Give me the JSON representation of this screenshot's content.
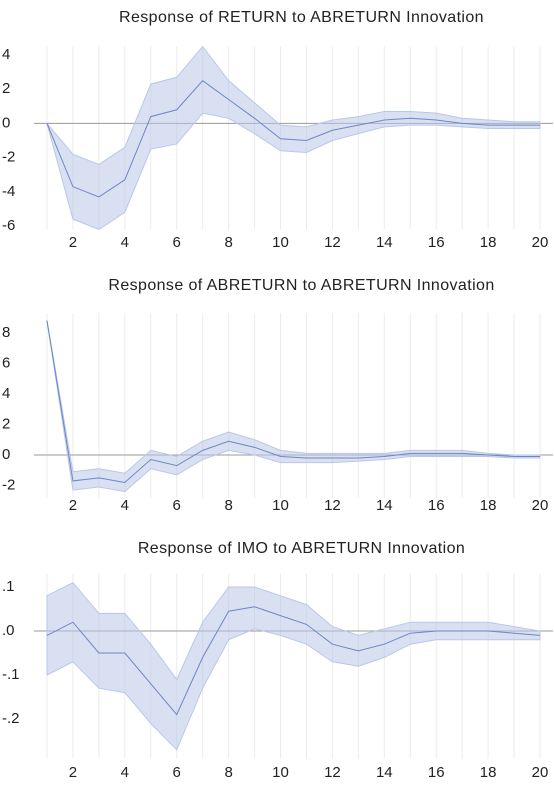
{
  "chart_data": [
    {
      "type": "line",
      "title": "Response of RETURN to ABRETURN Innovation",
      "x": [
        1,
        2,
        3,
        4,
        5,
        6,
        7,
        8,
        9,
        10,
        11,
        12,
        13,
        14,
        15,
        16,
        17,
        18,
        19,
        20
      ],
      "series": [
        {
          "color": "#6d86c6",
          "band_color": "#b9c7e8",
          "values": [
            0,
            -3.7,
            -4.3,
            -3.3,
            0.4,
            0.8,
            2.5,
            1.4,
            0.3,
            -0.9,
            -1.0,
            -0.4,
            -0.1,
            0.2,
            0.3,
            0.2,
            0.0,
            -0.1,
            -0.1,
            -0.1
          ],
          "lower": [
            0,
            -5.6,
            -6.2,
            -5.2,
            -1.5,
            -1.2,
            0.6,
            0.3,
            -0.6,
            -1.6,
            -1.7,
            -1.0,
            -0.6,
            -0.2,
            -0.1,
            -0.1,
            -0.2,
            -0.3,
            -0.3,
            -0.3
          ],
          "upper": [
            0,
            -1.8,
            -2.4,
            -1.4,
            2.3,
            2.7,
            4.5,
            2.5,
            1.2,
            -0.1,
            -0.2,
            0.2,
            0.4,
            0.7,
            0.7,
            0.6,
            0.3,
            0.2,
            0.1,
            0.1
          ]
        }
      ],
      "xlim": [
        0.5,
        20.5
      ],
      "ylim": [
        -6.2,
        4.5
      ],
      "xticks": [
        2,
        4,
        6,
        8,
        10,
        12,
        14,
        16,
        18,
        20
      ],
      "yticks": [
        4,
        2,
        0,
        -2,
        -4,
        -6
      ],
      "grid": true
    },
    {
      "type": "line",
      "title": "Response of ABRETURN to ABRETURN Innovation",
      "x": [
        1,
        2,
        3,
        4,
        5,
        6,
        7,
        8,
        9,
        10,
        11,
        12,
        13,
        14,
        15,
        16,
        17,
        18,
        19,
        20
      ],
      "series": [
        {
          "color": "#6d86c6",
          "band_color": "#b9c7e8",
          "values": [
            8.8,
            -1.7,
            -1.5,
            -1.8,
            -0.3,
            -0.7,
            0.3,
            0.9,
            0.5,
            -0.1,
            -0.2,
            -0.2,
            -0.2,
            -0.1,
            0.1,
            0.1,
            0.1,
            0.0,
            -0.1,
            -0.1
          ],
          "lower": [
            8.8,
            -2.3,
            -2.1,
            -2.4,
            -0.9,
            -1.3,
            -0.3,
            0.3,
            0,
            -0.5,
            -0.5,
            -0.5,
            -0.4,
            -0.3,
            -0.1,
            -0.1,
            -0.1,
            -0.1,
            -0.2,
            -0.2
          ],
          "upper": [
            8.8,
            -1.1,
            -0.9,
            -1.2,
            0.3,
            -0.1,
            0.9,
            1.5,
            1.0,
            0.3,
            0.1,
            0.1,
            0.1,
            0.1,
            0.3,
            0.3,
            0.3,
            0.1,
            0,
            0
          ]
        }
      ],
      "xlim": [
        0.5,
        20.5
      ],
      "ylim": [
        -2.8,
        9.3
      ],
      "xticks": [
        2,
        4,
        6,
        8,
        10,
        12,
        14,
        16,
        18,
        20
      ],
      "yticks": [
        8,
        6,
        4,
        2,
        0,
        -2
      ],
      "grid": true
    },
    {
      "type": "line",
      "title": "Response of IMO to ABRETURN Innovation",
      "x": [
        1,
        2,
        3,
        4,
        5,
        6,
        7,
        8,
        9,
        10,
        11,
        12,
        13,
        14,
        15,
        16,
        17,
        18,
        19,
        20
      ],
      "series": [
        {
          "color": "#6d86c6",
          "band_color": "#b9c7e8",
          "values": [
            -0.01,
            0.02,
            -0.05,
            -0.05,
            -0.12,
            -0.19,
            -0.06,
            0.045,
            0.055,
            0.035,
            0.015,
            -0.03,
            -0.045,
            -0.03,
            -0.005,
            0,
            0,
            0,
            -0.005,
            -0.01
          ],
          "lower": [
            -0.1,
            -0.07,
            -0.13,
            -0.14,
            -0.21,
            -0.27,
            -0.13,
            -0.02,
            0.005,
            -0.01,
            -0.03,
            -0.07,
            -0.08,
            -0.06,
            -0.03,
            -0.02,
            -0.02,
            -0.02,
            -0.02,
            -0.02
          ],
          "upper": [
            0.08,
            0.11,
            0.04,
            0.04,
            -0.03,
            -0.11,
            0.02,
            0.1,
            0.1,
            0.08,
            0.06,
            0.01,
            -0.01,
            0.005,
            0.02,
            0.02,
            0.02,
            0.02,
            0.01,
            0.0
          ]
        }
      ],
      "xlim": [
        0.5,
        20.5
      ],
      "ylim": [
        -0.29,
        0.13
      ],
      "xticks": [
        2,
        4,
        6,
        8,
        10,
        12,
        14,
        16,
        18,
        20
      ],
      "yticks": [
        {
          "value": 0.1,
          "label": ".1"
        },
        {
          "value": 0,
          "label": ".0"
        },
        {
          "value": -0.1,
          "label": "-.1"
        },
        {
          "value": -0.2,
          "label": "-.2"
        }
      ],
      "grid": true
    }
  ]
}
